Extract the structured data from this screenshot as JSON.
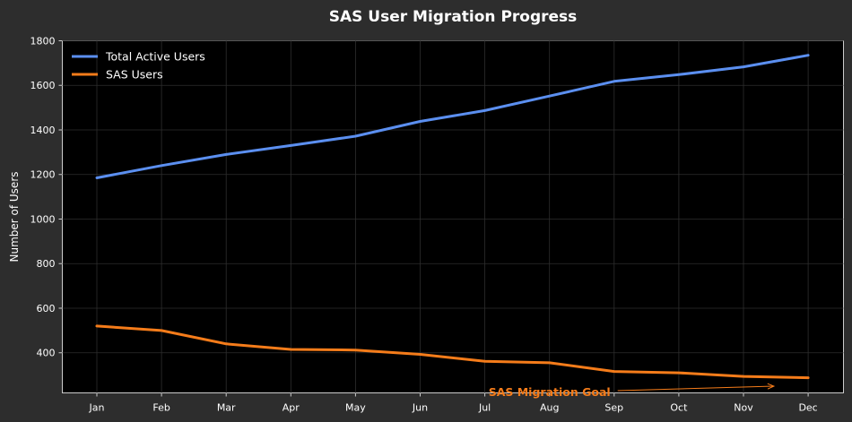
{
  "chart_data": {
    "type": "line",
    "title": "SAS User Migration Progress",
    "xlabel": "",
    "ylabel": "Number of Users",
    "categories": [
      "Jan",
      "Feb",
      "Mar",
      "Apr",
      "May",
      "Jun",
      "Jul",
      "Aug",
      "Sep",
      "Oct",
      "Nov",
      "Dec"
    ],
    "series": [
      {
        "name": "Total Active Users",
        "color": "#5b8ff0",
        "values": [
          1185,
          1240,
          1290,
          1330,
          1372,
          1438,
          1487,
          1552,
          1618,
          1648,
          1683,
          1735
        ]
      },
      {
        "name": "SAS Users",
        "color": "#f57c1a",
        "values": [
          520,
          500,
          440,
          415,
          412,
          393,
          362,
          355,
          316,
          310,
          294,
          288
        ]
      }
    ],
    "ylim": [
      220,
      1800
    ],
    "yticks": [
      400,
      600,
      800,
      1000,
      1200,
      1400,
      1600,
      1800
    ],
    "grid": true,
    "legend_position": "top-left",
    "background": "#000000",
    "figure_background": "#2d2d2d",
    "annotation": {
      "text": "SAS Migration Goal",
      "color": "#f57c1a",
      "x": "Aug",
      "y": 222,
      "arrow_to_x": 10.47,
      "arrow_to_y": 250
    }
  }
}
